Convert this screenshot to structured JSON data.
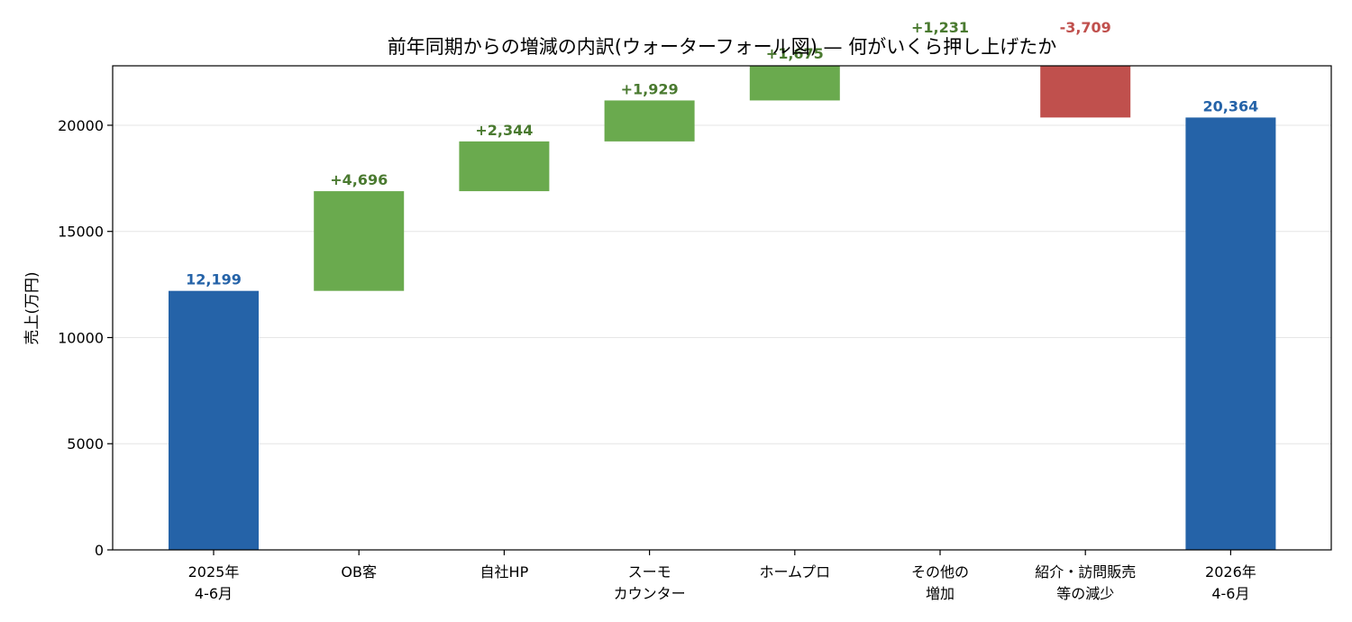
{
  "chart_data": {
    "type": "bar",
    "subtype": "waterfall",
    "title": "前年同期からの増減の内訳(ウォーターフォール図) — 何がいくら押し上げたか",
    "xlabel": "",
    "ylabel": "売上(万円)",
    "ylim": [
      0,
      22800
    ],
    "yticks": [
      0,
      5000,
      10000,
      15000,
      20000
    ],
    "grid": "horizontal",
    "categories": [
      [
        "2025年",
        "4-6月"
      ],
      [
        "OB客"
      ],
      [
        "自社HP"
      ],
      [
        "スーモ",
        "カウンター"
      ],
      [
        "ホームプロ"
      ],
      [
        "その他の",
        "増加"
      ],
      [
        "紹介・訪問販売",
        "等の減少"
      ],
      [
        "2026年",
        "4-6月"
      ]
    ],
    "steps": [
      {
        "kind": "total",
        "value": 12199,
        "label": "12,199"
      },
      {
        "kind": "increase",
        "value": 4696,
        "label": "+4,696"
      },
      {
        "kind": "increase",
        "value": 2344,
        "label": "+2,344"
      },
      {
        "kind": "increase",
        "value": 1929,
        "label": "+1,929"
      },
      {
        "kind": "increase",
        "value": 1675,
        "label": "+1,675"
      },
      {
        "kind": "increase",
        "value": 1231,
        "label": "+1,231"
      },
      {
        "kind": "decrease",
        "value": -3709,
        "label": "-3,709"
      },
      {
        "kind": "total",
        "value": 20364,
        "label": "20,364"
      }
    ],
    "colors": {
      "total": "#2563a8",
      "increase": "#6aaa4e",
      "decrease": "#c0504d",
      "increase_label": "#4a7a30",
      "decrease_label": "#c0504d",
      "total_label": "#2563a8"
    }
  }
}
